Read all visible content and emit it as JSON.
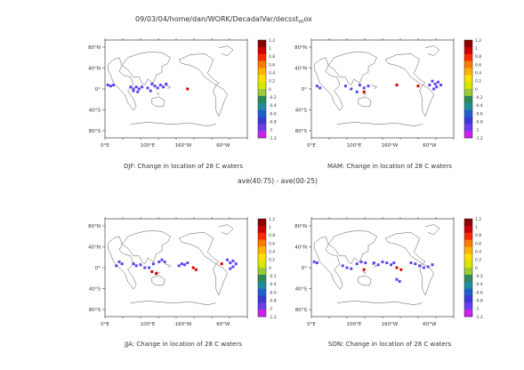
{
  "page": {
    "header": "09/03/04/home/dan/WORK/DecadalVar/decsst",
    "header_subscript": "m",
    "header_suffix": "ox",
    "middle_title": "ave(40:75) - ave(00-25)"
  },
  "axes": {
    "lat_labels": [
      "80°N",
      "40°N",
      "0°",
      "40°S",
      "80°S"
    ],
    "lon_labels": [
      "0°E",
      "100°E",
      "160°W",
      "60°W"
    ]
  },
  "colorbar": {
    "labels": [
      "1.2",
      "1",
      "0.8",
      "0.6",
      "0.4",
      "0.2",
      "0",
      "-0.2",
      "-0.4",
      "-0.6",
      "-0.8",
      "-1",
      "-1.2"
    ],
    "colors": [
      "#8b0000",
      "#cc0000",
      "#ff2a00",
      "#ff7a00",
      "#ffb300",
      "#ffe000",
      "#d6e800",
      "#9acd32",
      "#2e8b57",
      "#1e8f9a",
      "#1e5fd0",
      "#3a3ad8",
      "#6a3df2",
      "#cc22ee"
    ]
  },
  "panels": [
    {
      "id": "djf",
      "title": "DJF: Change in location of 28 C waters"
    },
    {
      "id": "mam",
      "title": "MAM: Change in location of 28 C waters"
    },
    {
      "id": "jja",
      "title": "JJA: Change in location of 28 C waters"
    },
    {
      "id": "son",
      "title": "SON: Change in location of 28 C waters"
    }
  ],
  "colors": {
    "negative_change": "#5b47f0",
    "positive_change": "#d40000",
    "coastline": "#555555"
  }
}
